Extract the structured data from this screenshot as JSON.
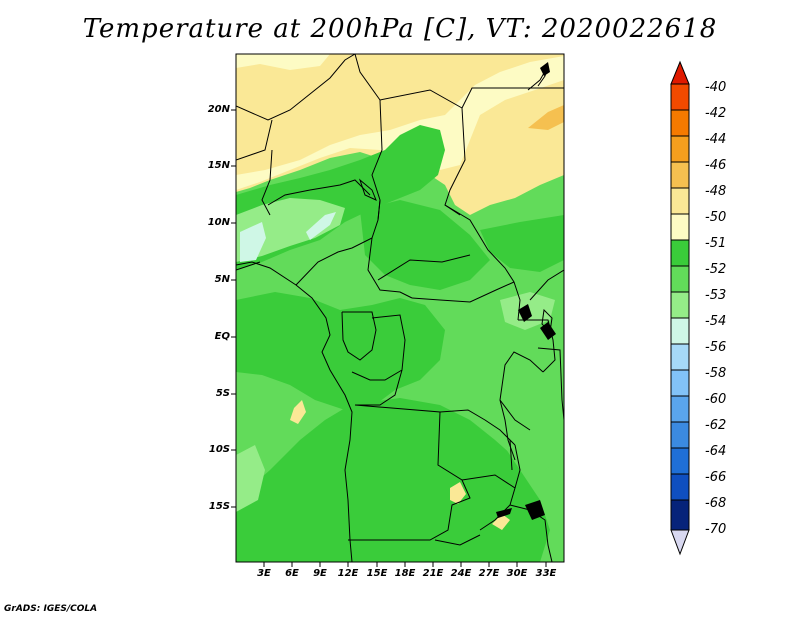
{
  "title": "Temperature at 200hPa [C], VT: 2020022618",
  "credit": "GrADS: IGES/COLA",
  "latitude_labels": [
    "20N",
    "15N",
    "10N",
    "5N",
    "EQ",
    "5S",
    "10S",
    "15S"
  ],
  "longitude_labels": [
    "3E",
    "6E",
    "9E",
    "12E",
    "15E",
    "18E",
    "21E",
    "24E",
    "27E",
    "30E",
    "33E"
  ],
  "colorbar": {
    "labels": [
      "-40",
      "-42",
      "-44",
      "-46",
      "-48",
      "-50",
      "-51",
      "-52",
      "-53",
      "-54",
      "-56",
      "-58",
      "-60",
      "-62",
      "-64",
      "-66",
      "-68",
      "-70"
    ],
    "colors": [
      "#e01a00",
      "#f24a00",
      "#f57a00",
      "#f59f1e",
      "#f5c050",
      "#fae896",
      "#fdfbc4",
      "#3acc3a",
      "#62db5a",
      "#95ec88",
      "#cff7e6",
      "#a6d9f7",
      "#82c2f7",
      "#5aa5ec",
      "#3b8ae0",
      "#1f6fd6",
      "#0f4fc0",
      "#06237a",
      "#d8d8f0"
    ]
  },
  "colors": {
    "dark_green": "#3acc3a",
    "mid_green": "#62db5a",
    "light_green": "#95ec88",
    "pale_cyan": "#cff7e6",
    "pale_yellow": "#fdfbc4",
    "yellow": "#fae896",
    "orange": "#f5c050"
  }
}
